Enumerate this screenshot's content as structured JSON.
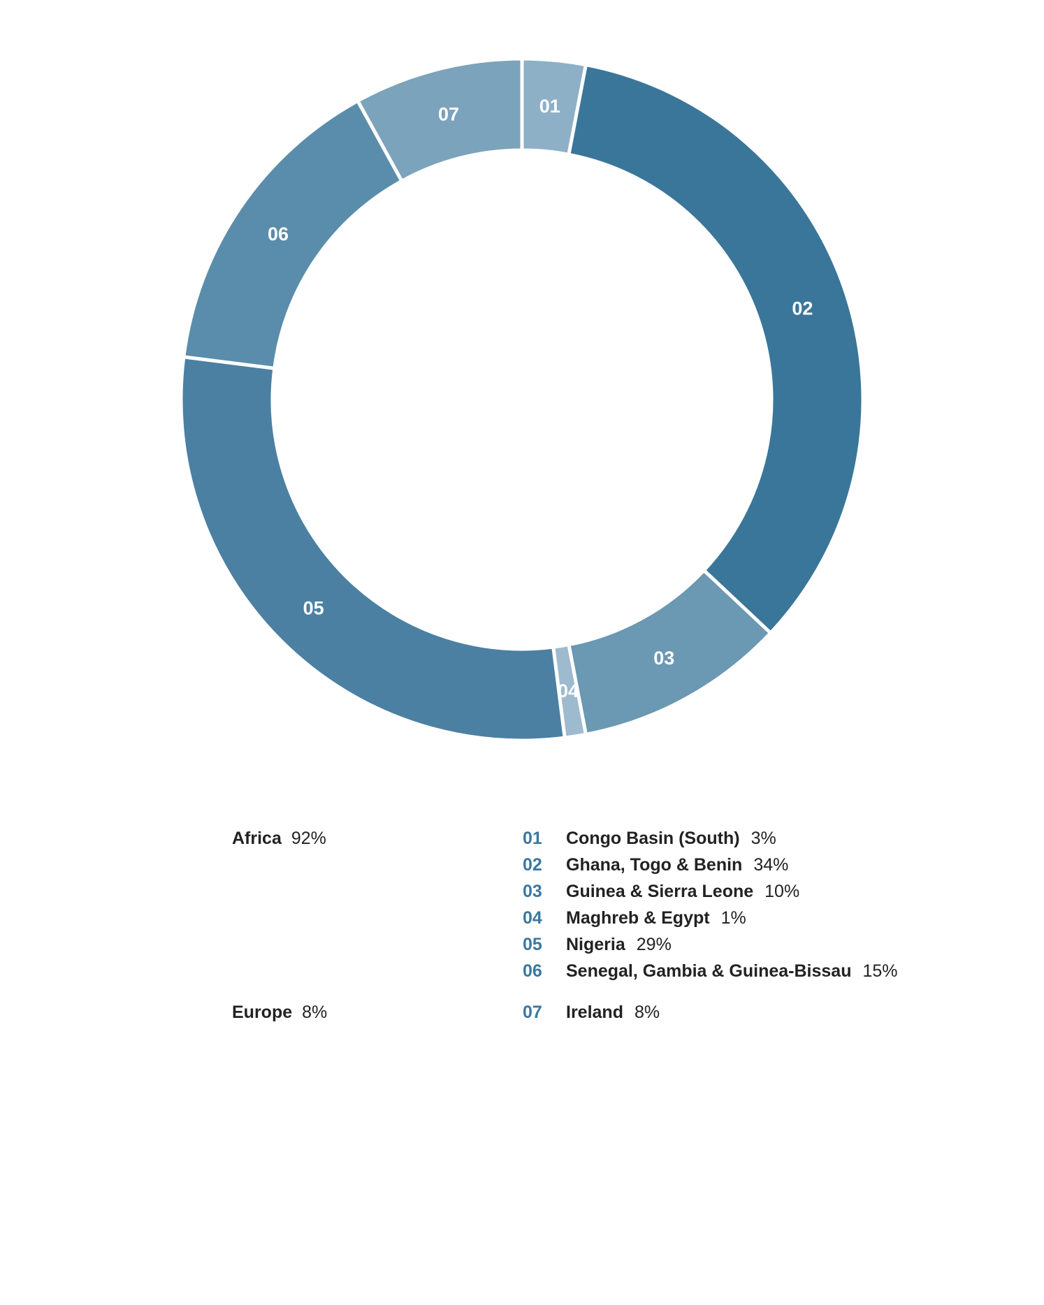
{
  "chart_data": {
    "type": "pie",
    "style": "donut",
    "slices": [
      {
        "code": "01",
        "name": "Congo Basin (South)",
        "value": 3,
        "display": "3%",
        "color": "#8db0c7"
      },
      {
        "code": "02",
        "name": "Ghana, Togo & Benin",
        "value": 34,
        "display": "34%",
        "color": "#3a7699"
      },
      {
        "code": "03",
        "name": "Guinea & Sierra Leone",
        "value": 10,
        "display": "10%",
        "color": "#6b98b2"
      },
      {
        "code": "04",
        "name": "Maghreb & Egypt",
        "value": 1,
        "display": "1%",
        "color": "#9ebacf"
      },
      {
        "code": "05",
        "name": "Nigeria",
        "value": 29,
        "display": "29%",
        "color": "#4b80a2"
      },
      {
        "code": "06",
        "name": "Senegal, Gambia & Guinea-Bissau",
        "value": 15,
        "display": "15%",
        "color": "#5a8dab"
      },
      {
        "code": "07",
        "name": "Ireland",
        "value": 8,
        "display": "8%",
        "color": "#7ba3bb"
      }
    ],
    "groups": [
      {
        "name": "Africa",
        "display": "92%",
        "members": [
          "01",
          "02",
          "03",
          "04",
          "05",
          "06"
        ]
      },
      {
        "name": "Europe",
        "display": "8%",
        "members": [
          "07"
        ]
      }
    ]
  },
  "legend": {
    "groups": [
      {
        "name": "Africa",
        "pct": "92%"
      },
      {
        "name": "Europe",
        "pct": "8%"
      }
    ],
    "items": [
      {
        "code": "01",
        "name": "Congo Basin (South)",
        "pct": "3%"
      },
      {
        "code": "02",
        "name": "Ghana, Togo & Benin",
        "pct": "34%"
      },
      {
        "code": "03",
        "name": "Guinea & Sierra Leone",
        "pct": "10%"
      },
      {
        "code": "04",
        "name": "Maghreb & Egypt",
        "pct": "1%"
      },
      {
        "code": "05",
        "name": "Nigeria",
        "pct": "29%"
      },
      {
        "code": "06",
        "name": "Senegal, Gambia & Guinea-Bissau",
        "pct": "15%"
      },
      {
        "code": "07",
        "name": "Ireland",
        "pct": "8%"
      }
    ]
  }
}
